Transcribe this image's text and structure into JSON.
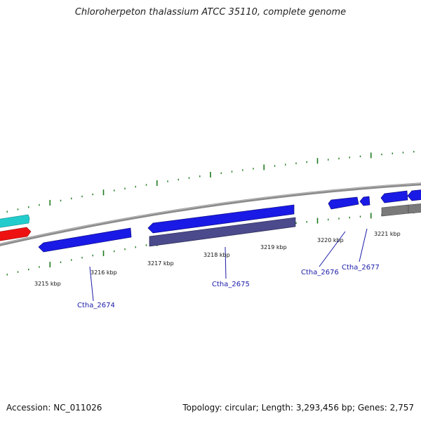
{
  "title": "Chloroherpeton thalassium ATCC 35110, complete genome",
  "accession_text": "Accession: NC_011026",
  "summary_text": "Topology: circular; Length: 3,293,456 bp; Genes: 2,757",
  "colors": {
    "backbone": "#8a8a8a",
    "tick": "#1e7a1e",
    "gene_blue": "#1a1ae6",
    "gene_purple": "#4a4a8c",
    "gene_gray": "#7a7a7a",
    "gene_cyan": "#22cccc",
    "gene_red": "#ee1111",
    "label_blue": "#1a1aa8"
  },
  "scale_labels": [
    "3215 kbp",
    "3216 kbp",
    "3217 kbp",
    "3218 kbp",
    "3219 kbp",
    "3220 kbp",
    "3221 kbp"
  ],
  "gene_labels": [
    "Ctha_2674",
    "Ctha_2675",
    "Ctha_2676",
    "Ctha_2677"
  ]
}
